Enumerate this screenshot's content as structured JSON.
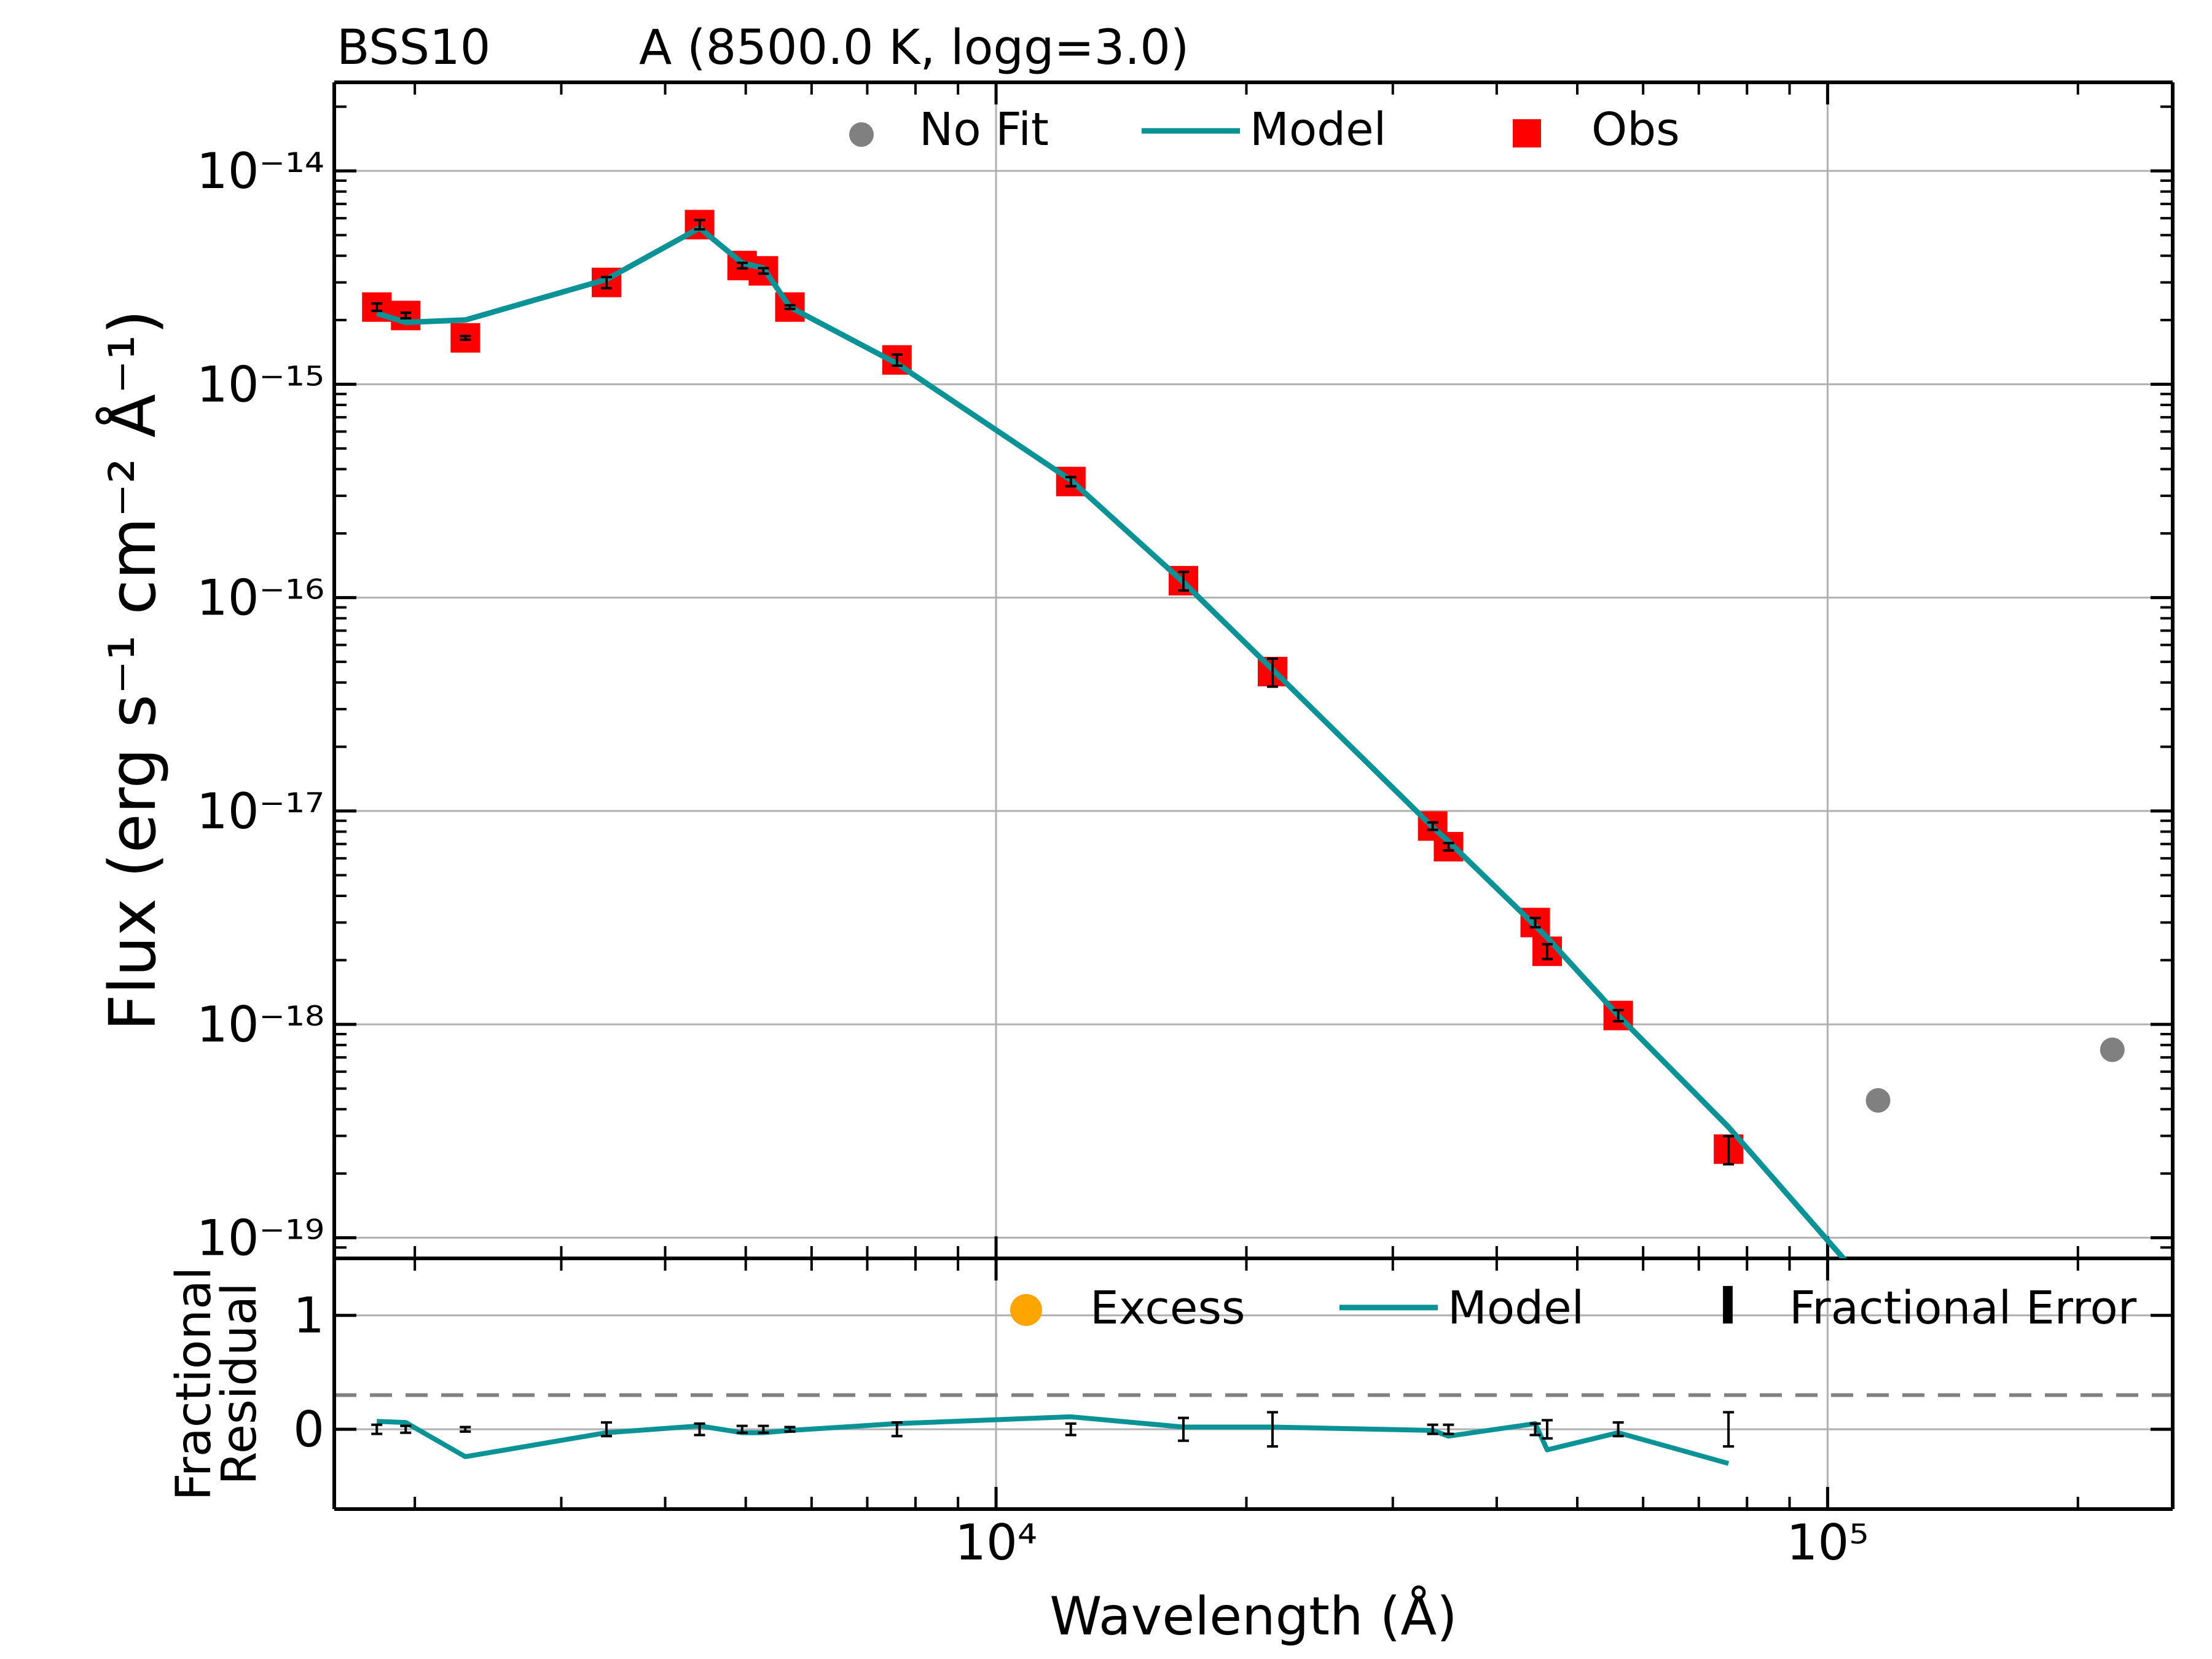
{
  "figure": {
    "title_left": "BSS10",
    "title_right": "A (8500.0 K, logg=3.0)"
  },
  "colors": {
    "model": "#0a9396",
    "obs": "#ff0000",
    "nofit": "#808080",
    "excess": "#ffa500",
    "grid": "#b0b0b0",
    "dashed": "#808080"
  },
  "chart_data": [
    {
      "name": "sed",
      "type": "scatter",
      "ylabel": "Flux (erg s⁻¹ cm⁻² Å⁻¹)",
      "xscale": "log",
      "yscale": "log",
      "xlim": [
        1600,
        260000
      ],
      "ylim": [
        8e-20,
        2.6e-14
      ],
      "grid": true,
      "legend": {
        "placement": "top-center",
        "entries": [
          "No Fit",
          "Model",
          "Obs"
        ]
      },
      "ytick_labels": [
        {
          "value": 1e-14,
          "label": "10⁻¹⁴"
        },
        {
          "value": 1e-15,
          "label": "10⁻¹⁵"
        },
        {
          "value": 1e-16,
          "label": "10⁻¹⁶"
        },
        {
          "value": 1e-17,
          "label": "10⁻¹⁷"
        },
        {
          "value": 1e-18,
          "label": "10⁻¹⁸"
        },
        {
          "value": 1e-19,
          "label": "10⁻¹⁹"
        }
      ],
      "series": [
        {
          "name": "Obs",
          "points": [
            {
              "x": 1800,
              "y": 2.3e-15,
              "err": 0.04
            },
            {
              "x": 1950,
              "y": 2.1e-15,
              "err": 0.03
            },
            {
              "x": 2300,
              "y": 1.65e-15,
              "err": 0.02
            },
            {
              "x": 3400,
              "y": 3e-15,
              "err": 0.06
            },
            {
              "x": 4400,
              "y": 5.6e-15,
              "err": 0.05
            },
            {
              "x": 4950,
              "y": 3.6e-15,
              "err": 0.03
            },
            {
              "x": 5250,
              "y": 3.4e-15,
              "err": 0.03
            },
            {
              "x": 5650,
              "y": 2.3e-15,
              "err": 0.02
            },
            {
              "x": 7600,
              "y": 1.3e-15,
              "err": 0.06
            },
            {
              "x": 12300,
              "y": 3.5e-16,
              "err": 0.05
            },
            {
              "x": 16800,
              "y": 1.2e-16,
              "err": 0.1
            },
            {
              "x": 21500,
              "y": 4.5e-17,
              "err": 0.15
            },
            {
              "x": 33500,
              "y": 8.5e-18,
              "err": 0.04
            },
            {
              "x": 35000,
              "y": 6.8e-18,
              "err": 0.04
            },
            {
              "x": 44500,
              "y": 3e-18,
              "err": 0.05
            },
            {
              "x": 46000,
              "y": 2.2e-18,
              "err": 0.08
            },
            {
              "x": 56000,
              "y": 1.1e-18,
              "err": 0.06
            },
            {
              "x": 76000,
              "y": 2.6e-19,
              "err": 0.15
            }
          ]
        },
        {
          "name": "No Fit",
          "points": [
            {
              "x": 115000,
              "y": 4.4e-19
            },
            {
              "x": 220000,
              "y": 7.6e-19
            }
          ]
        },
        {
          "name": "Model",
          "points": [
            {
              "x": 1800,
              "y": 2.15e-15
            },
            {
              "x": 1950,
              "y": 1.95e-15
            },
            {
              "x": 2300,
              "y": 2e-15
            },
            {
              "x": 3400,
              "y": 3.1e-15
            },
            {
              "x": 4400,
              "y": 5.4e-15
            },
            {
              "x": 4950,
              "y": 3.7e-15
            },
            {
              "x": 5250,
              "y": 3.5e-15
            },
            {
              "x": 5650,
              "y": 2.3e-15
            },
            {
              "x": 7600,
              "y": 1.25e-15
            },
            {
              "x": 12300,
              "y": 3.55e-16
            },
            {
              "x": 16800,
              "y": 1.18e-16
            },
            {
              "x": 21500,
              "y": 4.6e-17
            },
            {
              "x": 33500,
              "y": 8.4e-18
            },
            {
              "x": 35000,
              "y": 7.2e-18
            },
            {
              "x": 44500,
              "y": 2.9e-18
            },
            {
              "x": 46000,
              "y": 2.55e-18
            },
            {
              "x": 56000,
              "y": 1.1e-18
            },
            {
              "x": 76000,
              "y": 3.3e-19
            },
            {
              "x": 108000,
              "y": 6.9e-20
            }
          ]
        }
      ]
    },
    {
      "name": "residual",
      "type": "line",
      "xlabel": "Wavelength (Å)",
      "ylabel": [
        "Fractional",
        "Residual"
      ],
      "xscale": "log",
      "xlim": [
        1600,
        260000
      ],
      "ylim": [
        -0.7,
        1.5
      ],
      "grid": true,
      "dashed_line_y": 0.3,
      "legend": {
        "placement": "top-right",
        "entries": [
          "Excess",
          "Model",
          "Fractional Error"
        ]
      },
      "xtick_labels": [
        {
          "value": 10000,
          "label": "10⁴"
        },
        {
          "value": 100000,
          "label": "10⁵"
        }
      ],
      "ytick_labels": [
        {
          "value": 1,
          "label": "1"
        },
        {
          "value": 0,
          "label": "0"
        }
      ],
      "series": [
        {
          "name": "Model",
          "points": [
            {
              "x": 1800,
              "y": 0.07
            },
            {
              "x": 1950,
              "y": 0.06
            },
            {
              "x": 2300,
              "y": -0.24
            },
            {
              "x": 3400,
              "y": -0.03
            },
            {
              "x": 4400,
              "y": 0.03
            },
            {
              "x": 4950,
              "y": -0.03
            },
            {
              "x": 5250,
              "y": -0.03
            },
            {
              "x": 5650,
              "y": -0.01
            },
            {
              "x": 7600,
              "y": 0.05
            },
            {
              "x": 12300,
              "y": 0.11
            },
            {
              "x": 16800,
              "y": 0.02
            },
            {
              "x": 21500,
              "y": 0.02
            },
            {
              "x": 33500,
              "y": -0.01
            },
            {
              "x": 35000,
              "y": -0.06
            },
            {
              "x": 44500,
              "y": 0.05
            },
            {
              "x": 46000,
              "y": -0.18
            },
            {
              "x": 56000,
              "y": -0.03
            },
            {
              "x": 76000,
              "y": -0.3
            }
          ]
        },
        {
          "name": "Fractional Error",
          "points": [
            {
              "x": 1800,
              "y": 0,
              "err": 0.04
            },
            {
              "x": 1950,
              "y": 0,
              "err": 0.03
            },
            {
              "x": 2300,
              "y": 0,
              "err": 0.02
            },
            {
              "x": 3400,
              "y": 0,
              "err": 0.06
            },
            {
              "x": 4400,
              "y": 0,
              "err": 0.05
            },
            {
              "x": 4950,
              "y": 0,
              "err": 0.03
            },
            {
              "x": 5250,
              "y": 0,
              "err": 0.03
            },
            {
              "x": 5650,
              "y": 0,
              "err": 0.02
            },
            {
              "x": 7600,
              "y": 0,
              "err": 0.06
            },
            {
              "x": 12300,
              "y": 0,
              "err": 0.05
            },
            {
              "x": 16800,
              "y": 0,
              "err": 0.1
            },
            {
              "x": 21500,
              "y": 0,
              "err": 0.15
            },
            {
              "x": 33500,
              "y": 0,
              "err": 0.04
            },
            {
              "x": 35000,
              "y": 0,
              "err": 0.04
            },
            {
              "x": 44500,
              "y": 0,
              "err": 0.05
            },
            {
              "x": 46000,
              "y": 0,
              "err": 0.08
            },
            {
              "x": 56000,
              "y": 0,
              "err": 0.06
            },
            {
              "x": 76000,
              "y": 0,
              "err": 0.15
            }
          ]
        }
      ]
    }
  ]
}
